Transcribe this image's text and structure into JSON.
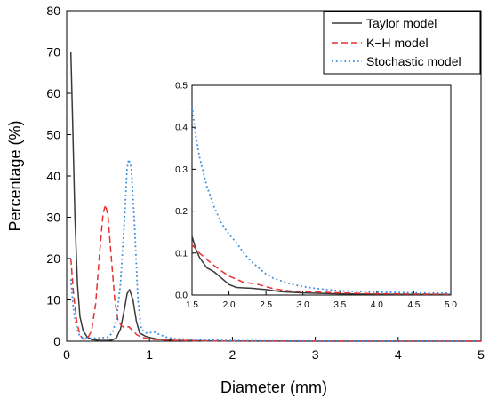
{
  "chart_data": [
    {
      "id": "main",
      "type": "line",
      "xlabel": "Diameter (mm)",
      "ylabel": "Percentage (%)",
      "xlim": [
        0,
        5
      ],
      "ylim": [
        0,
        80
      ],
      "x_ticks": [
        "0",
        "1",
        "2",
        "3",
        "4",
        "5"
      ],
      "y_ticks": [
        "0",
        "10",
        "20",
        "30",
        "40",
        "50",
        "60",
        "70",
        "80"
      ],
      "grid": false,
      "legend_position": "top-right",
      "series": [
        {
          "name": "Taylor model",
          "color": "#3a3a3a",
          "dash": "solid",
          "points": [
            [
              0.05,
              70.0
            ],
            [
              0.07,
              55.0
            ],
            [
              0.1,
              30.0
            ],
            [
              0.13,
              14.0
            ],
            [
              0.16,
              6.0
            ],
            [
              0.2,
              2.5
            ],
            [
              0.25,
              1.0
            ],
            [
              0.3,
              0.4
            ],
            [
              0.4,
              0.2
            ],
            [
              0.5,
              0.2
            ],
            [
              0.55,
              0.3
            ],
            [
              0.6,
              0.8
            ],
            [
              0.65,
              3.0
            ],
            [
              0.7,
              8.0
            ],
            [
              0.73,
              11.5
            ],
            [
              0.76,
              12.5
            ],
            [
              0.8,
              10.0
            ],
            [
              0.84,
              5.0
            ],
            [
              0.88,
              2.0
            ],
            [
              0.95,
              1.2
            ],
            [
              1.0,
              0.9
            ],
            [
              1.1,
              0.5
            ],
            [
              1.3,
              0.2
            ],
            [
              1.5,
              0.14
            ],
            [
              1.7,
              0.06
            ],
            [
              2.0,
              0.02
            ],
            [
              3.0,
              0.01
            ],
            [
              5.0,
              0.0
            ]
          ]
        },
        {
          "name": "K−H model",
          "color": "#e83030",
          "dash": "dashed",
          "points": [
            [
              0.05,
              20.0
            ],
            [
              0.08,
              12.0
            ],
            [
              0.12,
              5.0
            ],
            [
              0.16,
              1.5
            ],
            [
              0.2,
              0.5
            ],
            [
              0.25,
              0.6
            ],
            [
              0.3,
              2.5
            ],
            [
              0.35,
              9.0
            ],
            [
              0.4,
              22.0
            ],
            [
              0.44,
              31.0
            ],
            [
              0.47,
              33.0
            ],
            [
              0.5,
              30.0
            ],
            [
              0.54,
              20.0
            ],
            [
              0.58,
              10.0
            ],
            [
              0.62,
              5.0
            ],
            [
              0.66,
              3.8
            ],
            [
              0.7,
              3.2
            ],
            [
              0.75,
              3.5
            ],
            [
              0.8,
              2.5
            ],
            [
              0.85,
              1.5
            ],
            [
              0.9,
              1.0
            ],
            [
              1.0,
              0.5
            ],
            [
              1.2,
              0.25
            ],
            [
              1.5,
              0.12
            ],
            [
              2.0,
              0.05
            ],
            [
              3.0,
              0.01
            ],
            [
              5.0,
              0.0
            ]
          ]
        },
        {
          "name": "Stochastic model",
          "color": "#3a8ee0",
          "dash": "dotted",
          "points": [
            [
              0.05,
              15.0
            ],
            [
              0.08,
              8.0
            ],
            [
              0.12,
              3.0
            ],
            [
              0.16,
              1.2
            ],
            [
              0.2,
              0.8
            ],
            [
              0.3,
              0.7
            ],
            [
              0.4,
              0.8
            ],
            [
              0.5,
              1.0
            ],
            [
              0.55,
              2.0
            ],
            [
              0.6,
              5.0
            ],
            [
              0.65,
              14.0
            ],
            [
              0.7,
              30.0
            ],
            [
              0.73,
              42.0
            ],
            [
              0.75,
              44.0
            ],
            [
              0.78,
              42.0
            ],
            [
              0.82,
              28.0
            ],
            [
              0.86,
              10.0
            ],
            [
              0.9,
              3.0
            ],
            [
              0.95,
              2.0
            ],
            [
              1.0,
              2.0
            ],
            [
              1.05,
              2.3
            ],
            [
              1.1,
              1.8
            ],
            [
              1.2,
              1.0
            ],
            [
              1.3,
              0.6
            ],
            [
              1.5,
              0.45
            ],
            [
              2.0,
              0.12
            ],
            [
              3.0,
              0.02
            ],
            [
              5.0,
              0.0
            ]
          ]
        }
      ]
    },
    {
      "id": "inset",
      "type": "line",
      "xlim": [
        1.5,
        5.0
      ],
      "ylim": [
        0,
        0.5
      ],
      "x_ticks": [
        "1.5",
        "2.0",
        "2.5",
        "3.0",
        "3.5",
        "4.0",
        "4.5",
        "5.0"
      ],
      "y_ticks": [
        "0.0",
        "0.1",
        "0.2",
        "0.3",
        "0.4",
        "0.5"
      ],
      "grid": false,
      "series": [
        {
          "name": "Taylor model",
          "color": "#3a3a3a",
          "dash": "solid",
          "points": [
            [
              1.5,
              0.14
            ],
            [
              1.55,
              0.11
            ],
            [
              1.6,
              0.09
            ],
            [
              1.7,
              0.065
            ],
            [
              1.8,
              0.055
            ],
            [
              1.9,
              0.04
            ],
            [
              2.0,
              0.025
            ],
            [
              2.1,
              0.018
            ],
            [
              2.2,
              0.017
            ],
            [
              2.3,
              0.016
            ],
            [
              2.5,
              0.013
            ],
            [
              2.7,
              0.008
            ],
            [
              3.0,
              0.005
            ],
            [
              3.5,
              0.003
            ],
            [
              4.0,
              0.002
            ],
            [
              5.0,
              0.001
            ]
          ]
        },
        {
          "name": "K−H model",
          "color": "#e83030",
          "dash": "dashed",
          "points": [
            [
              1.5,
              0.12
            ],
            [
              1.6,
              0.1
            ],
            [
              1.7,
              0.085
            ],
            [
              1.8,
              0.07
            ],
            [
              1.9,
              0.057
            ],
            [
              2.0,
              0.045
            ],
            [
              2.1,
              0.038
            ],
            [
              2.2,
              0.03
            ],
            [
              2.3,
              0.028
            ],
            [
              2.4,
              0.025
            ],
            [
              2.5,
              0.02
            ],
            [
              2.6,
              0.015
            ],
            [
              2.8,
              0.01
            ],
            [
              3.0,
              0.008
            ],
            [
              3.5,
              0.005
            ],
            [
              4.0,
              0.003
            ],
            [
              5.0,
              0.002
            ]
          ]
        },
        {
          "name": "Stochastic model",
          "color": "#3a8ee0",
          "dash": "dotted",
          "points": [
            [
              1.5,
              0.45
            ],
            [
              1.55,
              0.38
            ],
            [
              1.6,
              0.33
            ],
            [
              1.7,
              0.26
            ],
            [
              1.8,
              0.21
            ],
            [
              1.9,
              0.17
            ],
            [
              2.0,
              0.145
            ],
            [
              2.1,
              0.125
            ],
            [
              2.2,
              0.1
            ],
            [
              2.3,
              0.08
            ],
            [
              2.4,
              0.065
            ],
            [
              2.5,
              0.05
            ],
            [
              2.6,
              0.04
            ],
            [
              2.8,
              0.028
            ],
            [
              3.0,
              0.02
            ],
            [
              3.2,
              0.015
            ],
            [
              3.5,
              0.01
            ],
            [
              4.0,
              0.007
            ],
            [
              4.5,
              0.005
            ],
            [
              5.0,
              0.004
            ]
          ]
        }
      ]
    }
  ]
}
